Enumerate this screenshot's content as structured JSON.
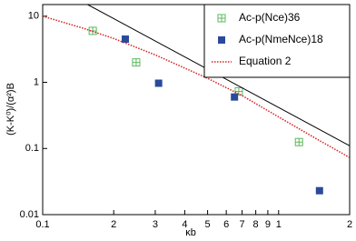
{
  "chart_data": {
    "type": "scatter",
    "x_label": "κb",
    "y_label": "(K-K⁰)/(α²)B",
    "log_x": true,
    "log_y": true,
    "xlim": [
      0.1,
      2
    ],
    "ylim": [
      0.01,
      15
    ],
    "xticks": [
      {
        "value": 0.1,
        "label": "0.1"
      },
      {
        "value": 0.2,
        "label": "2"
      },
      {
        "value": 0.3,
        "label": "3"
      },
      {
        "value": 0.4,
        "label": "4"
      },
      {
        "value": 0.5,
        "label": "5"
      },
      {
        "value": 0.6,
        "label": "6"
      },
      {
        "value": 0.7,
        "label": "7"
      },
      {
        "value": 0.8,
        "label": "8"
      },
      {
        "value": 0.9,
        "label": "9"
      },
      1,
      2
    ],
    "yticks": [
      {
        "value": 0.01,
        "label": "0.01"
      },
      {
        "value": 0.1,
        "label": "0.1"
      },
      1,
      10
    ],
    "legend": "top-right",
    "series": [
      {
        "name": "Ac-p(Nce)36",
        "style": "open-square-plus",
        "color": "#5cb85c",
        "x": [
          0.163,
          0.249,
          0.678,
          1.22
        ],
        "values": [
          6.0,
          2.0,
          0.73,
          0.125
        ]
      },
      {
        "name": "Ac-p(NmeNce)18",
        "style": "filled-square",
        "color": "#2a4a9a",
        "x": [
          0.224,
          0.31,
          0.65,
          1.49
        ],
        "values": [
          4.5,
          0.97,
          0.6,
          0.023
        ]
      },
      {
        "name": "Equation 2",
        "style": "dotted-line",
        "color": "#d62020",
        "x": [
          0.1,
          0.15,
          0.2,
          0.3,
          0.5,
          0.7,
          1,
          1.5,
          2
        ],
        "values": [
          10,
          6.5,
          4.6,
          2.6,
          1.15,
          0.63,
          0.3,
          0.13,
          0.073
        ]
      },
      {
        "style": "solid-line",
        "color": "#000000",
        "x": [
          0.155,
          2
        ],
        "values": [
          15,
          0.11
        ]
      }
    ]
  }
}
